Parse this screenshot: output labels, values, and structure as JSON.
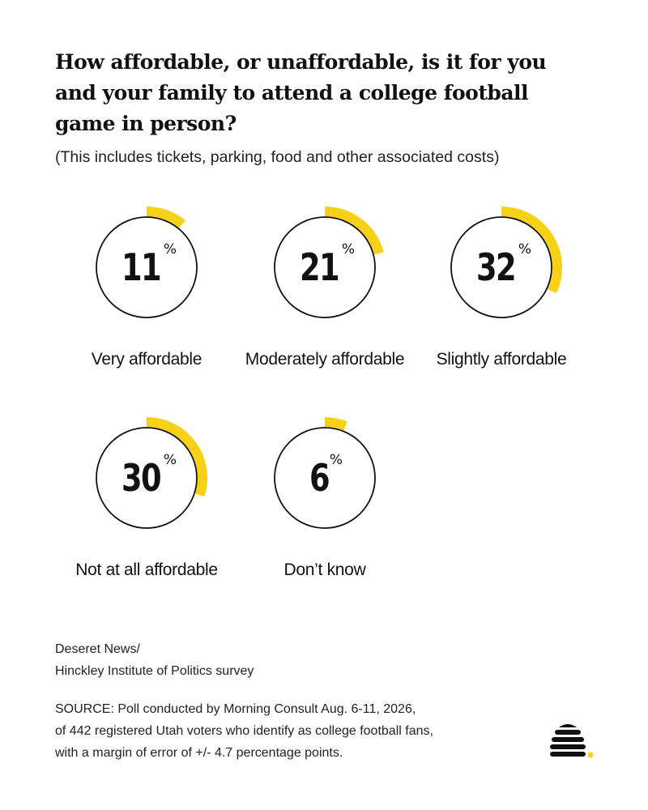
{
  "title": "How affordable, or unaffordable, is it for you and your family to attend a college football game in person?",
  "subtitle": "(This includes tickets, parking, food and other associated costs)",
  "chart_data": {
    "type": "gauge",
    "unit": "%",
    "max": 100,
    "categories": [
      "Very affordable",
      "Moderately affordable",
      "Slightly affordable",
      "Not at all affordable",
      "Don’t know"
    ],
    "values": [
      11,
      21,
      32,
      30,
      6
    ]
  },
  "credit": {
    "line1": "Deseret News/",
    "line2": "Hinckley Institute of Politics survey"
  },
  "source": {
    "line1": "SOURCE: Poll conducted by Morning Consult Aug. 6-11, 2026,",
    "line2": "of 442 registered Utah voters who identify as college football fans,",
    "line3": "with a margin of error of +/- 4.7 percentage points."
  },
  "colors": {
    "accent": "#F7D117",
    "ring": "#111111",
    "text": "#111111"
  },
  "logo": {
    "icon": "beehive-logo-icon"
  }
}
